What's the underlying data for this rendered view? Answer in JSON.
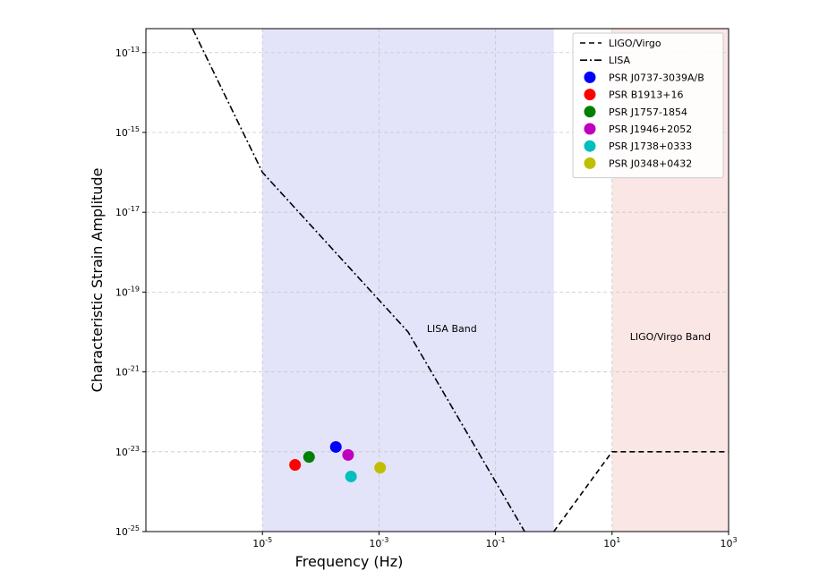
{
  "chart_data": {
    "type": "line",
    "title": "",
    "xlabel": "Frequency (Hz)",
    "ylabel": "Characteristic Strain Amplitude",
    "xscale": "log",
    "yscale": "log",
    "xlim_exp": [
      -7,
      3
    ],
    "ylim_exp": [
      -25,
      -12.4
    ],
    "xticks": [
      {
        "base": "10",
        "exp": "-5",
        "value": -5
      },
      {
        "base": "10",
        "exp": "-3",
        "value": -3
      },
      {
        "base": "10",
        "exp": "-1",
        "value": -1
      },
      {
        "base": "10",
        "exp": "1",
        "value": 1
      },
      {
        "base": "10",
        "exp": "3",
        "value": 3
      }
    ],
    "yticks": [
      {
        "base": "10",
        "exp": "-13",
        "value": -13
      },
      {
        "base": "10",
        "exp": "-15",
        "value": -15
      },
      {
        "base": "10",
        "exp": "-17",
        "value": -17
      },
      {
        "base": "10",
        "exp": "-19",
        "value": -19
      },
      {
        "base": "10",
        "exp": "-21",
        "value": -21
      },
      {
        "base": "10",
        "exp": "-23",
        "value": -23
      },
      {
        "base": "10",
        "exp": "-25",
        "value": -25
      }
    ],
    "grid": true,
    "legend_position": "top-right",
    "bands": [
      {
        "label": "LISA Band",
        "x_exp": [
          -5,
          0
        ],
        "color": "#e3e3fa"
      },
      {
        "label": "LIGO/Virgo Band",
        "x_exp": [
          1,
          3
        ],
        "color": "#fbe6e6"
      }
    ],
    "band_labels": [
      {
        "text": "LISA Band",
        "x_exp": -1.75,
        "y_exp": -20
      },
      {
        "text": "LIGO/Virgo Band",
        "x_exp": 2,
        "y_exp": -20.2
      }
    ],
    "series": [
      {
        "name": "LIGO/Virgo",
        "style": "dashed",
        "color": "#000000",
        "points": [
          [
            0,
            -25
          ],
          [
            1,
            -23
          ],
          [
            3,
            -23
          ]
        ]
      },
      {
        "name": "LISA",
        "style": "dashdot",
        "color": "#000000",
        "points": [
          [
            -6.2,
            -12.4
          ],
          [
            -5.0,
            -16.0
          ],
          [
            -2.5,
            -20.0
          ],
          [
            -0.5,
            -25.0
          ]
        ]
      }
    ],
    "pulsars": [
      {
        "name": "PSR J0737-3039A/B",
        "color": "#0000ff",
        "x_exp": -3.74,
        "y_exp": -22.88
      },
      {
        "name": "PSR B1913+16",
        "color": "#ff0000",
        "x_exp": -4.44,
        "y_exp": -23.33
      },
      {
        "name": "PSR J1757-1854",
        "color": "#008000",
        "x_exp": -4.2,
        "y_exp": -23.13
      },
      {
        "name": "PSR J1946+2052",
        "color": "#bf00bf",
        "x_exp": -3.53,
        "y_exp": -23.08
      },
      {
        "name": "PSR J1738+0333",
        "color": "#00bfbf",
        "x_exp": -3.48,
        "y_exp": -23.62
      },
      {
        "name": "PSR J0348+0432",
        "color": "#bfbf00",
        "x_exp": -2.98,
        "y_exp": -23.4
      }
    ]
  }
}
